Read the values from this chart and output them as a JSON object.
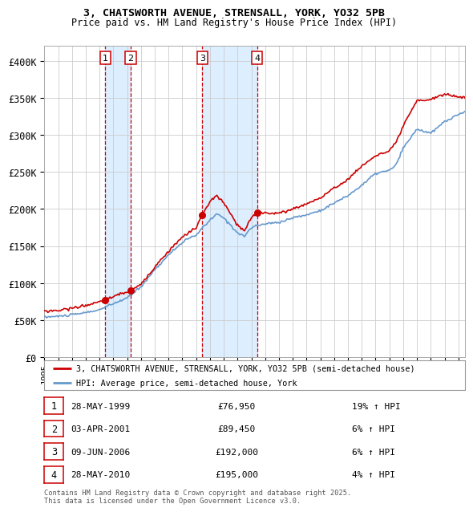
{
  "title_line1": "3, CHATSWORTH AVENUE, STRENSALL, YORK, YO32 5PB",
  "title_line2": "Price paid vs. HM Land Registry's House Price Index (HPI)",
  "ylim": [
    0,
    420000
  ],
  "yticks": [
    0,
    50000,
    100000,
    150000,
    200000,
    250000,
    300000,
    350000,
    400000
  ],
  "ytick_labels": [
    "£0",
    "£50K",
    "£100K",
    "£150K",
    "£200K",
    "£250K",
    "£300K",
    "£350K",
    "£400K"
  ],
  "sale_dates_num": [
    1999.41,
    2001.25,
    2006.44,
    2010.41
  ],
  "sale_prices": [
    76950,
    89450,
    192000,
    195000
  ],
  "sale_labels": [
    "1",
    "2",
    "3",
    "4"
  ],
  "sale_info": [
    {
      "label": "1",
      "date": "28-MAY-1999",
      "price": "£76,950",
      "hpi": "19% ↑ HPI"
    },
    {
      "label": "2",
      "date": "03-APR-2001",
      "price": "£89,450",
      "hpi": "6% ↑ HPI"
    },
    {
      "label": "3",
      "date": "09-JUN-2006",
      "price": "£192,000",
      "hpi": "6% ↑ HPI"
    },
    {
      "label": "4",
      "date": "28-MAY-2010",
      "price": "£195,000",
      "hpi": "4% ↑ HPI"
    }
  ],
  "legend_line1": "3, CHATSWORTH AVENUE, STRENSALL, YORK, YO32 5PB (semi-detached house)",
  "legend_line2": "HPI: Average price, semi-detached house, York",
  "footer": "Contains HM Land Registry data © Crown copyright and database right 2025.\nThis data is licensed under the Open Government Licence v3.0.",
  "red_color": "#cc0000",
  "blue_color": "#6699cc",
  "background_color": "#ffffff",
  "grid_color": "#cccccc",
  "shade_color": "#ddeeff"
}
